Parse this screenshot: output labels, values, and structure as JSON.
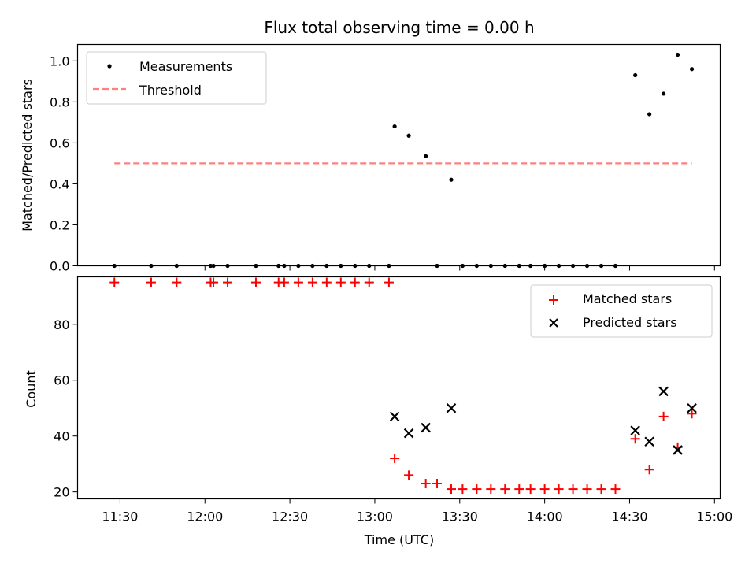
{
  "title": "Flux total observing time = 0.00 h",
  "chart_data": [
    {
      "type": "scatter",
      "ylabel": "Matched/Predicted stars",
      "ylim": [
        0,
        1.08
      ],
      "yticks": [
        "0.0",
        "0.2",
        "0.4",
        "0.6",
        "0.8",
        "1.0"
      ],
      "legend": {
        "placement": "top-left",
        "entries": [
          "Measurements",
          "Threshold"
        ]
      },
      "threshold": {
        "name": "Threshold",
        "value": 0.5,
        "x_range": [
          "11:28",
          "14:52"
        ],
        "color": "#ff8080",
        "style": "dashed"
      },
      "series": [
        {
          "name": "Measurements",
          "color": "#000000",
          "marker": "dot",
          "points": [
            [
              "11:28",
              0.0
            ],
            [
              "11:41",
              0.0
            ],
            [
              "11:50",
              0.0
            ],
            [
              "12:02",
              0.0
            ],
            [
              "12:03",
              0.0
            ],
            [
              "12:08",
              0.0
            ],
            [
              "12:18",
              0.0
            ],
            [
              "12:26",
              0.0
            ],
            [
              "12:28",
              0.0
            ],
            [
              "12:33",
              0.0
            ],
            [
              "12:38",
              0.0
            ],
            [
              "12:43",
              0.0
            ],
            [
              "12:48",
              0.0
            ],
            [
              "12:53",
              0.0
            ],
            [
              "12:58",
              0.0
            ],
            [
              "13:05",
              0.0
            ],
            [
              "13:07",
              0.68
            ],
            [
              "13:12",
              0.635
            ],
            [
              "13:18",
              0.535
            ],
            [
              "13:22",
              0.0
            ],
            [
              "13:27",
              0.42
            ],
            [
              "13:31",
              0.0
            ],
            [
              "13:36",
              0.0
            ],
            [
              "13:41",
              0.0
            ],
            [
              "13:46",
              0.0
            ],
            [
              "13:51",
              0.0
            ],
            [
              "13:55",
              0.0
            ],
            [
              "14:00",
              0.0
            ],
            [
              "14:05",
              0.0
            ],
            [
              "14:10",
              0.0
            ],
            [
              "14:15",
              0.0
            ],
            [
              "14:20",
              0.0
            ],
            [
              "14:25",
              0.0
            ],
            [
              "14:32",
              0.93
            ],
            [
              "14:37",
              0.74
            ],
            [
              "14:42",
              0.84
            ],
            [
              "14:47",
              1.03
            ],
            [
              "14:52",
              0.96
            ]
          ]
        }
      ]
    },
    {
      "type": "scatter",
      "xlabel": "Time (UTC)",
      "ylabel": "Count",
      "ylim": [
        17.5,
        97
      ],
      "yticks": [
        "20",
        "40",
        "60",
        "80"
      ],
      "xticks": [
        "11:30",
        "12:00",
        "12:30",
        "13:00",
        "13:30",
        "14:00",
        "14:30",
        "15:00"
      ],
      "legend": {
        "placement": "top-right",
        "entries": [
          "Matched stars",
          "Predicted stars"
        ]
      },
      "series": [
        {
          "name": "Matched stars",
          "color": "#ff0000",
          "marker": "plus",
          "points": [
            [
              "11:28",
              95
            ],
            [
              "11:41",
              95
            ],
            [
              "11:50",
              95
            ],
            [
              "12:02",
              95
            ],
            [
              "12:03",
              95
            ],
            [
              "12:08",
              95
            ],
            [
              "12:18",
              95
            ],
            [
              "12:26",
              95
            ],
            [
              "12:28",
              95
            ],
            [
              "12:33",
              95
            ],
            [
              "12:38",
              95
            ],
            [
              "12:43",
              95
            ],
            [
              "12:48",
              95
            ],
            [
              "12:53",
              95
            ],
            [
              "12:58",
              95
            ],
            [
              "13:05",
              95
            ],
            [
              "13:07",
              32
            ],
            [
              "13:12",
              26
            ],
            [
              "13:18",
              23
            ],
            [
              "13:22",
              23
            ],
            [
              "13:27",
              21
            ],
            [
              "13:31",
              21
            ],
            [
              "13:36",
              21
            ],
            [
              "13:41",
              21
            ],
            [
              "13:46",
              21
            ],
            [
              "13:51",
              21
            ],
            [
              "13:55",
              21
            ],
            [
              "14:00",
              21
            ],
            [
              "14:05",
              21
            ],
            [
              "14:10",
              21
            ],
            [
              "14:15",
              21
            ],
            [
              "14:20",
              21
            ],
            [
              "14:25",
              21
            ],
            [
              "14:32",
              39
            ],
            [
              "14:37",
              28
            ],
            [
              "14:42",
              47
            ],
            [
              "14:47",
              36
            ],
            [
              "14:52",
              48
            ]
          ]
        },
        {
          "name": "Predicted stars",
          "color": "#000000",
          "marker": "x",
          "points": [
            [
              "13:07",
              47
            ],
            [
              "13:12",
              41
            ],
            [
              "13:18",
              43
            ],
            [
              "13:27",
              50
            ],
            [
              "14:32",
              42
            ],
            [
              "14:37",
              38
            ],
            [
              "14:42",
              56
            ],
            [
              "14:47",
              35
            ],
            [
              "14:52",
              50
            ]
          ]
        }
      ]
    }
  ]
}
